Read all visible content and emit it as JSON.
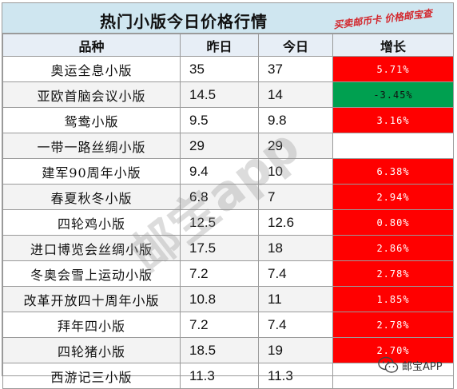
{
  "title": "热门小版今日价格行情",
  "slogan": "买卖邮币卡 价格邮宝查",
  "watermark": "邮宝app",
  "brand": {
    "name": "邮宝APP",
    "icon": "wechat-icon"
  },
  "colors": {
    "header_bg": "#cfe6f0",
    "up_bg": "#ff0000",
    "down_bg": "#00a050",
    "up_text": "#ffffff",
    "down_text": "#111111"
  },
  "chart_data": {
    "type": "table",
    "columns": [
      "品种",
      "昨日",
      "今日",
      "增长"
    ],
    "rows": [
      {
        "name": "奥运全息小版",
        "yesterday": "35",
        "today": "37",
        "growth": "5.71%",
        "trend": "up"
      },
      {
        "name": "亚欧首脑会议小版",
        "yesterday": "14.5",
        "today": "14",
        "growth": "-3.45%",
        "trend": "down"
      },
      {
        "name": "鸳鸯小版",
        "yesterday": "9.5",
        "today": "9.8",
        "growth": "3.16%",
        "trend": "up"
      },
      {
        "name": "一带一路丝绸小版",
        "yesterday": "29",
        "today": "29",
        "growth": "",
        "trend": "flat"
      },
      {
        "name": "建军90周年小版",
        "yesterday": "9.4",
        "today": "10",
        "growth": "6.38%",
        "trend": "up"
      },
      {
        "name": "春夏秋冬小版",
        "yesterday": "6.8",
        "today": "7",
        "growth": "2.94%",
        "trend": "up"
      },
      {
        "name": "四轮鸡小版",
        "yesterday": "12.5",
        "today": "12.6",
        "growth": "0.80%",
        "trend": "up"
      },
      {
        "name": "进口博览会丝绸小版",
        "yesterday": "17.5",
        "today": "18",
        "growth": "2.86%",
        "trend": "up"
      },
      {
        "name": "冬奥会雪上运动小版",
        "yesterday": "7.2",
        "today": "7.4",
        "growth": "2.78%",
        "trend": "up"
      },
      {
        "name": "改革开放四十周年小版",
        "yesterday": "10.8",
        "today": "11",
        "growth": "1.85%",
        "trend": "up"
      },
      {
        "name": "拜年四小版",
        "yesterday": "7.2",
        "today": "7.4",
        "growth": "2.78%",
        "trend": "up"
      },
      {
        "name": "四轮猪小版",
        "yesterday": "18.5",
        "today": "19",
        "growth": "2.70%",
        "trend": "up"
      },
      {
        "name": "西游记三小版",
        "yesterday": "11.3",
        "today": "11.3",
        "growth": "",
        "trend": "flat"
      }
    ]
  }
}
